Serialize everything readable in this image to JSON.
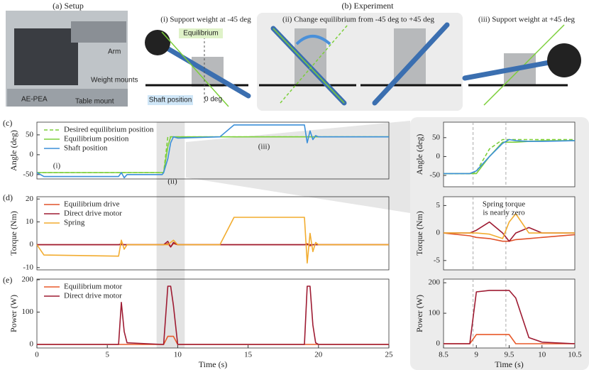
{
  "figure": {
    "setup_label": "(a) Setup",
    "experiment_label": "(b) Experiment",
    "setup_callouts": [
      "Arm",
      "Weight mounts",
      "Table mount",
      "AE-PEA"
    ],
    "steps": [
      "(i) Support weight at -45 deg",
      "(ii) Change equilibrium from -45 deg to +45 deg",
      "(iii) Support weight at +45 deg"
    ],
    "equilibrium_tag": "Equilibrium",
    "shaft_tag": "Shaft position",
    "zero_tag": "0 deg"
  },
  "chart_data": [
    {
      "type": "line",
      "label": "(c)",
      "ylabel": "Angle (deg)",
      "legend": "upper left",
      "x": [
        0,
        0.5,
        5.8,
        6,
        6.2,
        6.4,
        8.9,
        9,
        9.3,
        9.5,
        9.7,
        10,
        13,
        14,
        19,
        19.2,
        19.4,
        19.6,
        19.8,
        20,
        25
      ],
      "xlim": [
        0,
        25
      ],
      "ylim": [
        -61,
        82
      ],
      "yticks": [
        -50,
        0,
        50
      ],
      "series": [
        {
          "name": "Desired equilibrium position",
          "color": "#7ccf3a",
          "dashed": true,
          "values": [
            -45,
            -45,
            -45,
            -45,
            -45,
            -45,
            -45,
            -45,
            45,
            45,
            45,
            45,
            45,
            45,
            45,
            45,
            45,
            45,
            45,
            45,
            45
          ]
        },
        {
          "name": "Equilibrium position",
          "color": "#7ccf3a",
          "values": [
            -45,
            -45,
            -45,
            -45,
            -45,
            -45,
            -45,
            -45,
            20,
            45,
            45,
            45,
            45,
            45,
            45,
            45,
            45,
            45,
            45,
            45,
            45
          ]
        },
        {
          "name": "Shaft position",
          "color": "#3b8fd9",
          "values": [
            -45,
            -55,
            -55,
            -45,
            -58,
            -50,
            -50,
            -45,
            -10,
            30,
            45,
            42,
            45,
            75,
            75,
            30,
            60,
            38,
            48,
            45,
            45
          ]
        }
      ],
      "annotations": [
        "(i)",
        "(ii)",
        "(iii)"
      ]
    },
    {
      "type": "line",
      "label": "(d)",
      "ylabel": "Torque (Nm)",
      "legend": "upper left",
      "x": [
        0,
        0.5,
        5.8,
        6,
        6.2,
        6.4,
        8.9,
        9,
        9.3,
        9.5,
        9.7,
        10,
        13,
        14,
        19,
        19.2,
        19.4,
        19.6,
        19.8,
        20,
        25
      ],
      "xlim": [
        0,
        25
      ],
      "ylim": [
        -11,
        21
      ],
      "yticks": [
        -10,
        0,
        10,
        20
      ],
      "series": [
        {
          "name": "Equilibrium drive",
          "color": "#e0522a",
          "values": [
            0,
            0,
            0,
            0.5,
            0,
            0,
            0,
            0,
            0.5,
            -1,
            0.5,
            0,
            0,
            0,
            0,
            0.5,
            -0.5,
            0,
            0,
            0,
            0
          ]
        },
        {
          "name": "Direct drive motor",
          "color": "#9e1b32",
          "values": [
            0,
            0,
            0,
            0,
            0,
            0,
            0,
            0,
            1.5,
            -1,
            1,
            0,
            0,
            0,
            0,
            0,
            0,
            0,
            0,
            0,
            0
          ]
        },
        {
          "name": "Spring",
          "color": "#f2ac2f",
          "values": [
            0,
            -4.5,
            -5,
            2,
            -2,
            0,
            0,
            0,
            0,
            1,
            2,
            0,
            0,
            12,
            12,
            -8,
            5,
            -3,
            1,
            0,
            0
          ]
        }
      ]
    },
    {
      "type": "line",
      "label": "(e)",
      "ylabel": "Power (W)",
      "xlabel": "Time (s)",
      "legend": "upper left",
      "x": [
        0,
        0.5,
        5.8,
        6,
        6.2,
        6.4,
        8.9,
        9,
        9.3,
        9.5,
        9.7,
        10,
        13,
        14,
        19,
        19.2,
        19.4,
        19.6,
        19.8,
        20,
        25
      ],
      "xlim": [
        0,
        25
      ],
      "xticks": [
        0,
        5,
        10,
        15,
        20,
        25
      ],
      "ylim": [
        -11,
        202
      ],
      "yticks": [
        0,
        100,
        200
      ],
      "series": [
        {
          "name": "Equilibrium motor",
          "color": "#e8592a",
          "values": [
            0,
            0,
            0,
            0,
            0,
            0,
            0,
            0,
            25,
            25,
            25,
            0,
            0,
            0,
            0,
            0,
            0,
            0,
            0,
            0,
            0
          ]
        },
        {
          "name": "Direct drive motor",
          "color": "#9e1b32",
          "values": [
            0,
            0,
            0,
            130,
            40,
            5,
            0,
            0,
            180,
            180,
            120,
            0,
            0,
            0,
            0,
            180,
            180,
            60,
            5,
            0,
            0
          ]
        }
      ]
    },
    {
      "type": "line",
      "ylabel": "Angle (deg)",
      "x": [
        8.5,
        8.9,
        9.0,
        9.2,
        9.4,
        9.5,
        9.6,
        9.8,
        10,
        10.5
      ],
      "xlim": [
        8.5,
        10.5
      ],
      "ylim": [
        -80,
        91
      ],
      "yticks": [
        -50,
        0,
        50
      ],
      "vlines": [
        8.95,
        9.45
      ],
      "series": [
        {
          "color": "#7ccf3a",
          "dashed": true,
          "values": [
            -45,
            -45,
            -40,
            20,
            45,
            45,
            45,
            45,
            45,
            45
          ]
        },
        {
          "color": "#7ccf3a",
          "values": [
            -45,
            -45,
            -45,
            0,
            38,
            38,
            38,
            40,
            42,
            42
          ]
        },
        {
          "color": "#3b8fd9",
          "values": [
            -45,
            -45,
            -38,
            0,
            35,
            45,
            42,
            40,
            40,
            42
          ]
        }
      ]
    },
    {
      "type": "line",
      "ylabel": "Torque (Nm)",
      "x": [
        8.5,
        8.9,
        9.0,
        9.2,
        9.4,
        9.5,
        9.6,
        9.8,
        10,
        10.5
      ],
      "xlim": [
        8.5,
        10.5
      ],
      "ylim": [
        -6.7,
        6.6
      ],
      "yticks": [
        -5,
        0,
        5
      ],
      "vlines": [
        8.95,
        9.45
      ],
      "series": [
        {
          "color": "#e0522a",
          "values": [
            0,
            -0.5,
            -0.8,
            -1,
            -1.5,
            -1.5,
            -1.2,
            -1,
            -0.8,
            -0.3
          ]
        },
        {
          "color": "#9e1b32",
          "values": [
            0,
            0,
            0.5,
            2,
            0,
            -1.5,
            0,
            1,
            0,
            0
          ]
        },
        {
          "color": "#f2ac2f",
          "values": [
            0,
            0,
            0,
            -0.2,
            -1,
            2,
            3.5,
            0,
            0,
            0
          ]
        }
      ],
      "annotations": [
        "Spring torque",
        "is nearly zero"
      ]
    },
    {
      "type": "line",
      "ylabel": "Power (W)",
      "xlabel": "Time (s)",
      "x": [
        8.5,
        8.9,
        9.0,
        9.2,
        9.4,
        9.5,
        9.6,
        9.8,
        10,
        10.5
      ],
      "xlim": [
        8.5,
        10.5
      ],
      "xticks": [
        8.5,
        9,
        9.5,
        10,
        10.5
      ],
      "ylim": [
        -14,
        212
      ],
      "yticks": [
        0,
        100,
        200
      ],
      "vlines": [
        8.95,
        9.45
      ],
      "series": [
        {
          "color": "#e8592a",
          "values": [
            0,
            0,
            30,
            30,
            30,
            30,
            0,
            0,
            0,
            0
          ]
        },
        {
          "color": "#9e1b32",
          "values": [
            0,
            0,
            170,
            175,
            175,
            175,
            150,
            20,
            5,
            0
          ]
        }
      ]
    }
  ]
}
